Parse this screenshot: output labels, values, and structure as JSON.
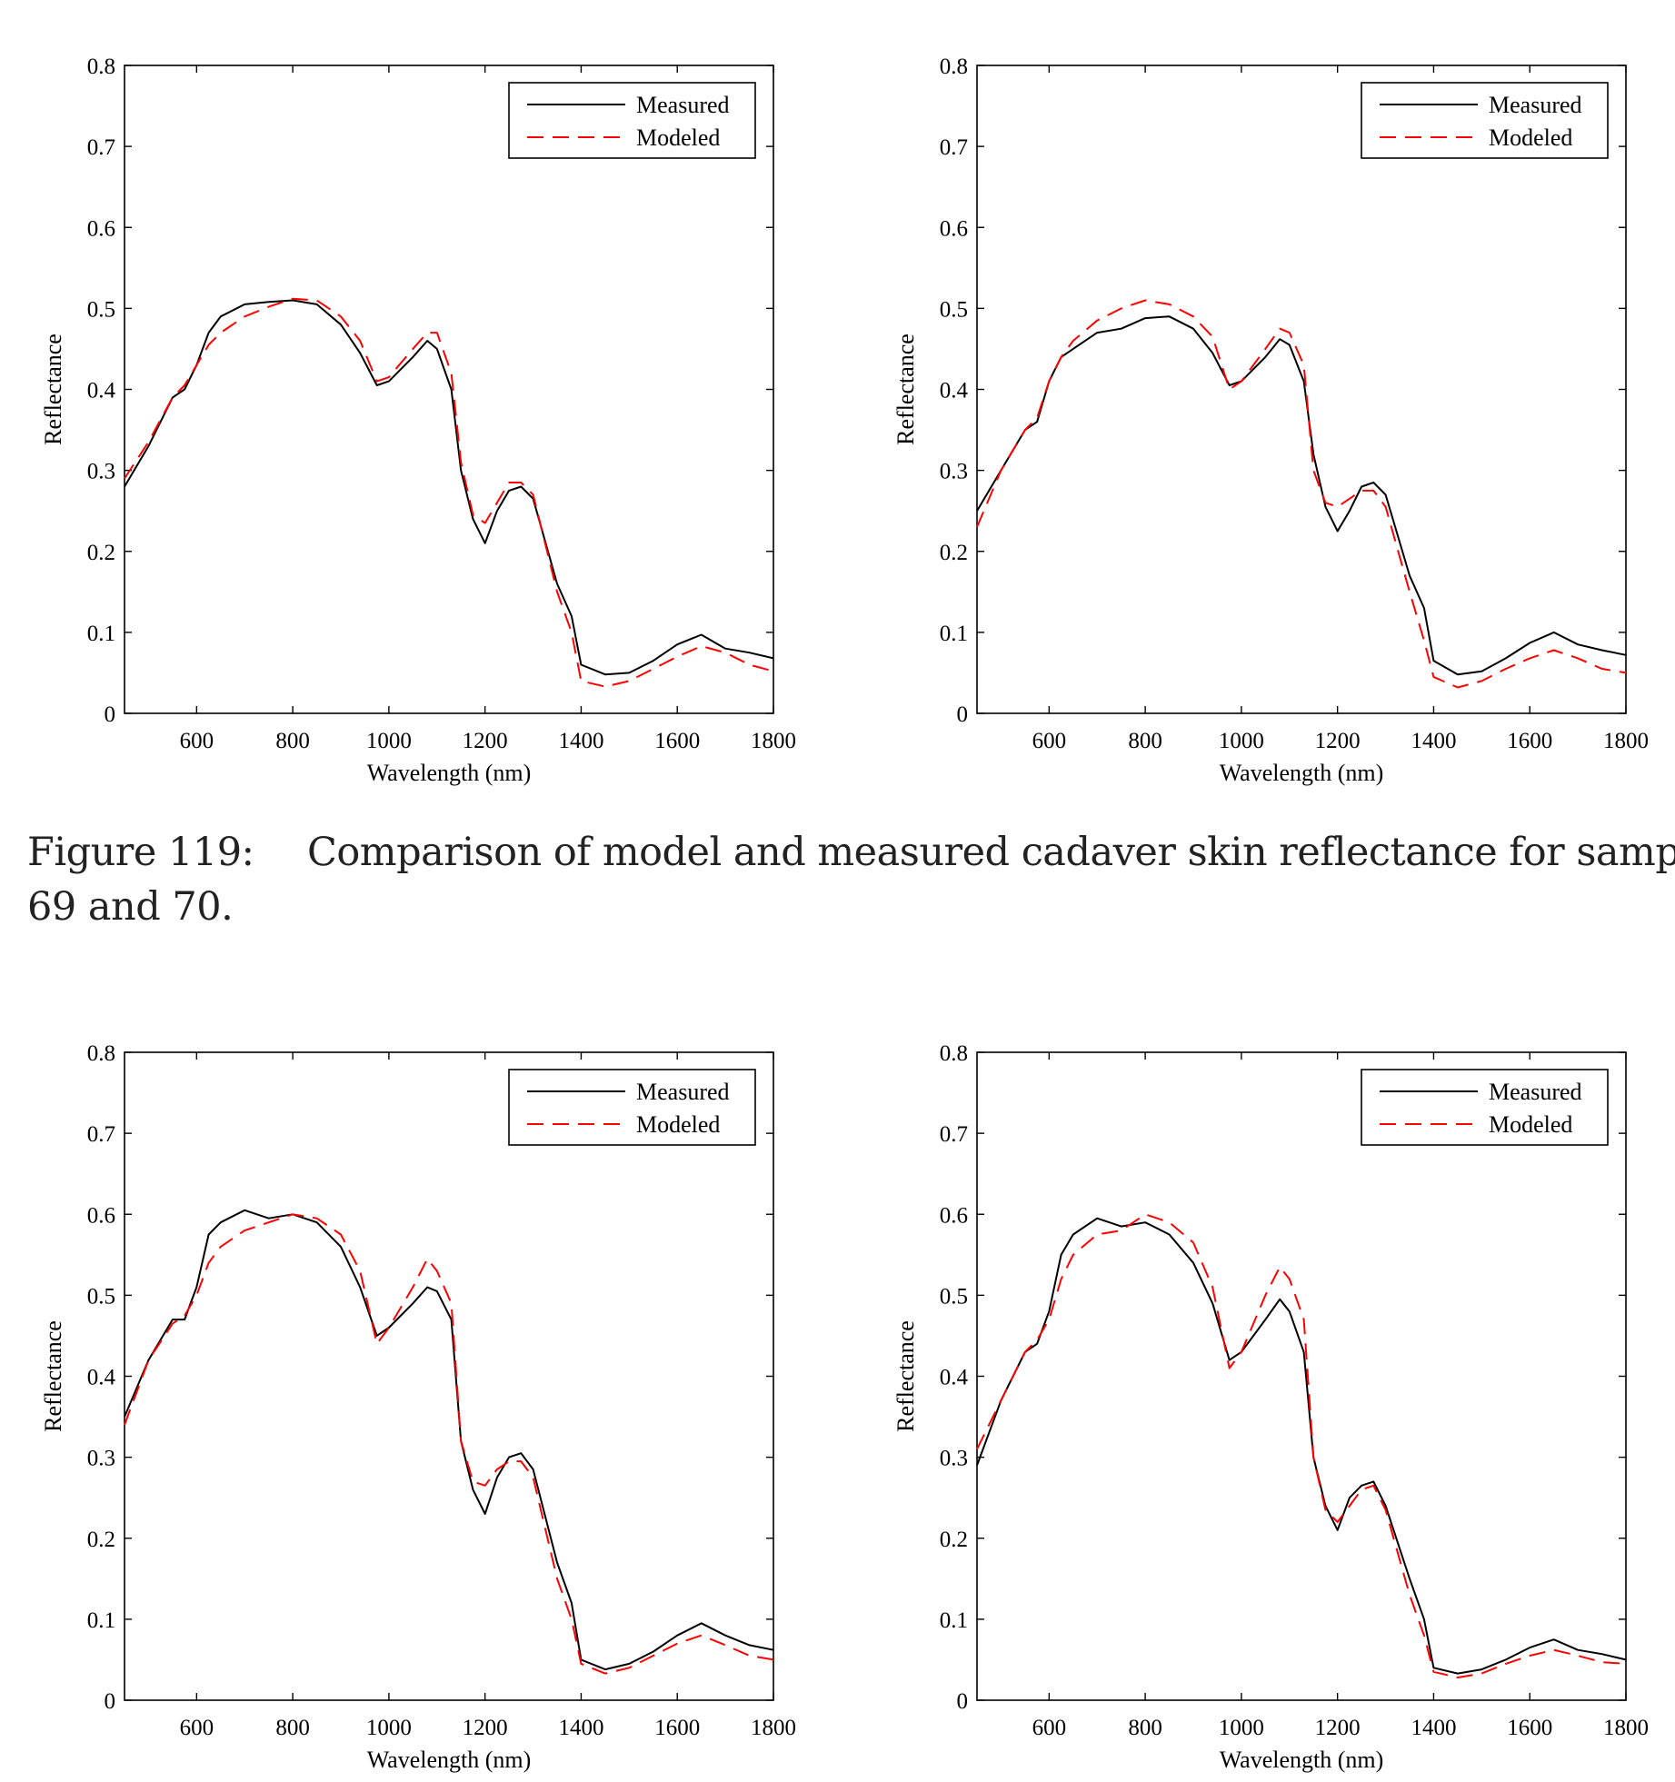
{
  "caption": {
    "label": "Figure 119:",
    "line1": "Comparison of model and measured cadaver skin reflectance for sample",
    "line2": "69 and 70."
  },
  "colors": {
    "measured": "#000000",
    "modeled": "#ff0000"
  },
  "chart_data": [
    {
      "type": "line",
      "title": "",
      "xlabel": "Wavelength (nm)",
      "ylabel": "Reflectance",
      "xlim": [
        450,
        1800
      ],
      "ylim": [
        0,
        0.8
      ],
      "xticks": [
        600,
        800,
        1000,
        1200,
        1400,
        1600,
        1800
      ],
      "yticks": [
        0,
        0.1,
        0.2,
        0.3,
        0.4,
        0.5,
        0.6,
        0.7,
        0.8
      ],
      "legend": "top-right",
      "x": [
        450,
        500,
        550,
        575,
        600,
        625,
        650,
        700,
        750,
        800,
        850,
        900,
        940,
        975,
        1000,
        1050,
        1080,
        1100,
        1130,
        1150,
        1175,
        1200,
        1225,
        1250,
        1275,
        1300,
        1350,
        1380,
        1400,
        1450,
        1500,
        1550,
        1600,
        1650,
        1700,
        1750,
        1800
      ],
      "series": [
        {
          "name": "Measured",
          "style": "solid",
          "values": [
            0.28,
            0.33,
            0.39,
            0.4,
            0.43,
            0.47,
            0.49,
            0.505,
            0.508,
            0.51,
            0.505,
            0.48,
            0.445,
            0.405,
            0.41,
            0.44,
            0.46,
            0.45,
            0.4,
            0.3,
            0.24,
            0.21,
            0.25,
            0.275,
            0.28,
            0.265,
            0.16,
            0.12,
            0.06,
            0.048,
            0.05,
            0.065,
            0.085,
            0.097,
            0.08,
            0.075,
            0.068
          ]
        },
        {
          "name": "Modeled",
          "style": "dashed",
          "values": [
            0.29,
            0.335,
            0.39,
            0.405,
            0.43,
            0.455,
            0.47,
            0.49,
            0.502,
            0.512,
            0.51,
            0.49,
            0.46,
            0.41,
            0.415,
            0.45,
            0.47,
            0.47,
            0.42,
            0.31,
            0.245,
            0.235,
            0.26,
            0.285,
            0.285,
            0.27,
            0.15,
            0.1,
            0.04,
            0.033,
            0.04,
            0.055,
            0.07,
            0.083,
            0.075,
            0.06,
            0.052
          ]
        }
      ]
    },
    {
      "type": "line",
      "title": "",
      "xlabel": "Wavelength (nm)",
      "ylabel": "Reflectance",
      "xlim": [
        450,
        1800
      ],
      "ylim": [
        0,
        0.8
      ],
      "xticks": [
        600,
        800,
        1000,
        1200,
        1400,
        1600,
        1800
      ],
      "yticks": [
        0,
        0.1,
        0.2,
        0.3,
        0.4,
        0.5,
        0.6,
        0.7,
        0.8
      ],
      "legend": "top-right",
      "x": [
        450,
        500,
        550,
        575,
        600,
        625,
        650,
        700,
        750,
        800,
        850,
        900,
        940,
        975,
        1000,
        1050,
        1080,
        1100,
        1130,
        1150,
        1175,
        1200,
        1225,
        1250,
        1275,
        1300,
        1350,
        1380,
        1400,
        1450,
        1500,
        1550,
        1600,
        1650,
        1700,
        1750,
        1800
      ],
      "series": [
        {
          "name": "Measured",
          "style": "solid",
          "values": [
            0.25,
            0.3,
            0.35,
            0.36,
            0.41,
            0.44,
            0.45,
            0.47,
            0.475,
            0.488,
            0.49,
            0.475,
            0.445,
            0.405,
            0.41,
            0.44,
            0.462,
            0.455,
            0.41,
            0.32,
            0.255,
            0.225,
            0.25,
            0.28,
            0.285,
            0.27,
            0.17,
            0.13,
            0.065,
            0.048,
            0.052,
            0.068,
            0.087,
            0.1,
            0.085,
            0.078,
            0.072
          ]
        },
        {
          "name": "Modeled",
          "style": "dashed",
          "values": [
            0.23,
            0.3,
            0.35,
            0.365,
            0.41,
            0.44,
            0.46,
            0.485,
            0.5,
            0.51,
            0.505,
            0.49,
            0.465,
            0.4,
            0.41,
            0.45,
            0.475,
            0.47,
            0.43,
            0.3,
            0.26,
            0.255,
            0.265,
            0.275,
            0.275,
            0.255,
            0.15,
            0.09,
            0.045,
            0.032,
            0.04,
            0.055,
            0.068,
            0.078,
            0.068,
            0.055,
            0.05
          ]
        }
      ]
    },
    {
      "type": "line",
      "title": "",
      "xlabel": "Wavelength (nm)",
      "ylabel": "Reflectance",
      "xlim": [
        450,
        1800
      ],
      "ylim": [
        0,
        0.8
      ],
      "xticks": [
        600,
        800,
        1000,
        1200,
        1400,
        1600,
        1800
      ],
      "yticks": [
        0,
        0.1,
        0.2,
        0.3,
        0.4,
        0.5,
        0.6,
        0.7,
        0.8
      ],
      "legend": "top-right",
      "x": [
        450,
        500,
        550,
        575,
        600,
        625,
        650,
        700,
        750,
        800,
        850,
        900,
        940,
        975,
        1000,
        1050,
        1080,
        1100,
        1130,
        1150,
        1175,
        1200,
        1225,
        1250,
        1275,
        1300,
        1350,
        1380,
        1400,
        1450,
        1500,
        1550,
        1600,
        1650,
        1700,
        1750,
        1800
      ],
      "series": [
        {
          "name": "Measured",
          "style": "solid",
          "values": [
            0.35,
            0.42,
            0.47,
            0.47,
            0.51,
            0.575,
            0.59,
            0.605,
            0.595,
            0.6,
            0.59,
            0.56,
            0.51,
            0.45,
            0.46,
            0.49,
            0.51,
            0.505,
            0.47,
            0.32,
            0.26,
            0.23,
            0.275,
            0.3,
            0.305,
            0.285,
            0.17,
            0.12,
            0.05,
            0.038,
            0.045,
            0.06,
            0.08,
            0.095,
            0.08,
            0.068,
            0.062
          ]
        },
        {
          "name": "Modeled",
          "style": "dashed",
          "values": [
            0.34,
            0.42,
            0.465,
            0.475,
            0.5,
            0.54,
            0.56,
            0.58,
            0.59,
            0.6,
            0.595,
            0.575,
            0.53,
            0.44,
            0.46,
            0.51,
            0.545,
            0.53,
            0.49,
            0.32,
            0.27,
            0.265,
            0.285,
            0.295,
            0.295,
            0.275,
            0.15,
            0.1,
            0.045,
            0.033,
            0.04,
            0.055,
            0.07,
            0.08,
            0.068,
            0.055,
            0.05
          ]
        }
      ]
    },
    {
      "type": "line",
      "title": "",
      "xlabel": "Wavelength (nm)",
      "ylabel": "Reflectance",
      "xlim": [
        450,
        1800
      ],
      "ylim": [
        0,
        0.8
      ],
      "xticks": [
        600,
        800,
        1000,
        1200,
        1400,
        1600,
        1800
      ],
      "yticks": [
        0,
        0.1,
        0.2,
        0.3,
        0.4,
        0.5,
        0.6,
        0.7,
        0.8
      ],
      "legend": "top-right",
      "x": [
        450,
        500,
        550,
        575,
        600,
        625,
        650,
        700,
        750,
        800,
        850,
        900,
        940,
        975,
        1000,
        1050,
        1080,
        1100,
        1130,
        1150,
        1175,
        1200,
        1225,
        1250,
        1275,
        1300,
        1350,
        1380,
        1400,
        1450,
        1500,
        1550,
        1600,
        1650,
        1700,
        1750,
        1800
      ],
      "series": [
        {
          "name": "Measured",
          "style": "solid",
          "values": [
            0.29,
            0.37,
            0.43,
            0.44,
            0.48,
            0.55,
            0.575,
            0.595,
            0.585,
            0.59,
            0.575,
            0.54,
            0.49,
            0.42,
            0.43,
            0.47,
            0.495,
            0.48,
            0.43,
            0.3,
            0.24,
            0.21,
            0.25,
            0.265,
            0.27,
            0.24,
            0.15,
            0.1,
            0.04,
            0.033,
            0.038,
            0.05,
            0.065,
            0.075,
            0.062,
            0.057,
            0.05
          ]
        },
        {
          "name": "Modeled",
          "style": "dashed",
          "values": [
            0.31,
            0.37,
            0.43,
            0.445,
            0.47,
            0.52,
            0.55,
            0.575,
            0.58,
            0.6,
            0.59,
            0.565,
            0.51,
            0.41,
            0.43,
            0.5,
            0.535,
            0.52,
            0.47,
            0.3,
            0.235,
            0.22,
            0.24,
            0.26,
            0.265,
            0.235,
            0.13,
            0.08,
            0.035,
            0.028,
            0.033,
            0.045,
            0.055,
            0.062,
            0.055,
            0.047,
            0.045
          ]
        }
      ]
    }
  ]
}
